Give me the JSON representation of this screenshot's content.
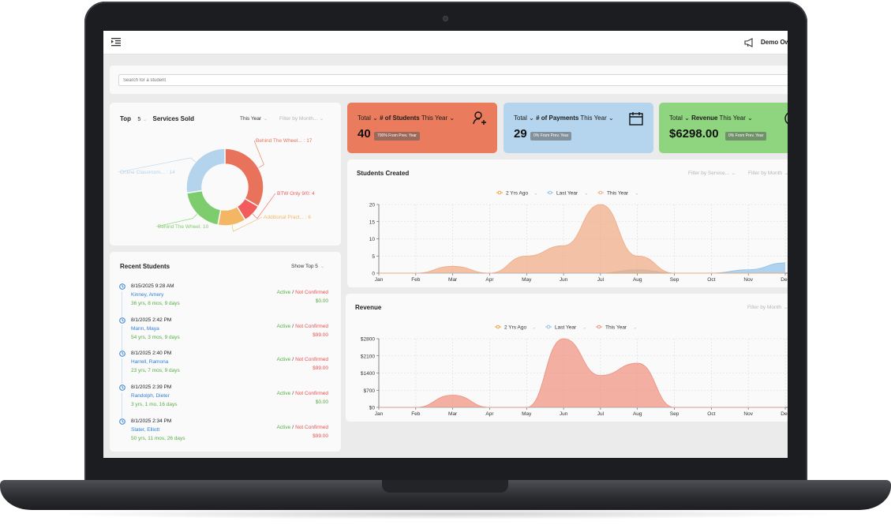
{
  "topbar": {
    "menu_icon": "menu-collapse-icon",
    "notification_icon": "megaphone-icon",
    "user_name": "Demo Own"
  },
  "search": {
    "placeholder": "Search for a student"
  },
  "top_services": {
    "title_prefix": "Top",
    "top_count": "5",
    "title_suffix": "Services Sold",
    "period": "This Year",
    "filter_placeholder": "Filter by Month...",
    "chart_data": {
      "type": "pie",
      "title": "Top 5 Services Sold",
      "labels": [
        "Behind The Wheel... : 17",
        "BTW Only 9/0: 4",
        "Additional Pract... : 6",
        "Behind The Wheel: 10",
        "Online Classroom... : 14"
      ],
      "names": [
        "Behind The Wheel...",
        "BTW Only 9/0",
        "Additional Pract...",
        "Behind The Wheel",
        "Online Classroom..."
      ],
      "values": [
        17,
        4,
        6,
        10,
        14
      ],
      "colors": [
        "#e8735a",
        "#f25c5c",
        "#f3b764",
        "#7dcc6e",
        "#b4d3ec"
      ]
    }
  },
  "tiles": [
    {
      "prefix": "Total",
      "metric": "# of Students",
      "period": "This Year",
      "value": "40",
      "badge": "700% From Prev. Year",
      "icon": "user-add-icon",
      "color": "#ea7c5d"
    },
    {
      "prefix": "Total",
      "metric": "# of Payments",
      "period": "This Year",
      "value": "29",
      "badge": "0% From Prev. Year",
      "icon": "calendar-icon",
      "color": "#b5d5ee"
    },
    {
      "prefix": "Total",
      "metric": "Revenue",
      "period": "This Year",
      "value": "$6298.00",
      "badge": "0% From Prev. Year",
      "icon": "dollar-circle-icon",
      "color": "#8fd47f"
    }
  ],
  "students_created": {
    "title": "Students Created",
    "filter_service": "Filter by Service...",
    "filter_month": "Filter by Month",
    "chart_data": {
      "type": "area",
      "title": "Students Created",
      "categories": [
        "Jan",
        "Feb",
        "Mar",
        "Apr",
        "May",
        "Jun",
        "Jul",
        "Aug",
        "Sep",
        "Oct",
        "Nov",
        "Dec"
      ],
      "y_ticks": [
        "0",
        "5",
        "10",
        "15",
        "20"
      ],
      "ylim": [
        0,
        20
      ],
      "series": [
        {
          "name": "2 Yrs Ago",
          "color": "#f0a437",
          "values": [
            0,
            0,
            0,
            0,
            0,
            0,
            0,
            0,
            0,
            0,
            0,
            0
          ]
        },
        {
          "name": "Last Year",
          "color": "#8fc0e8",
          "values": [
            0,
            0,
            0,
            0,
            0,
            0,
            0,
            1,
            0,
            0,
            1,
            3
          ]
        },
        {
          "name": "This Year",
          "color": "#f0aa82",
          "values": [
            0,
            0,
            2,
            0,
            5,
            8,
            20,
            5,
            0,
            0,
            0,
            0
          ]
        }
      ]
    }
  },
  "revenue": {
    "title": "Revenue",
    "filter_month": "Filter by Month",
    "chart_data": {
      "type": "area",
      "title": "Revenue",
      "categories": [
        "Jan",
        "Feb",
        "Mar",
        "Apr",
        "May",
        "Jun",
        "Jul",
        "Aug",
        "Sep",
        "Oct",
        "Nov",
        "Dec"
      ],
      "y_ticks": [
        "$0",
        "$700",
        "$1400",
        "$2100",
        "$2800"
      ],
      "ylim": [
        0,
        2800
      ],
      "series": [
        {
          "name": "2 Yrs Ago",
          "color": "#f0a437",
          "values": [
            0,
            0,
            0,
            0,
            0,
            0,
            0,
            0,
            0,
            0,
            0,
            0
          ]
        },
        {
          "name": "Last Year",
          "color": "#8fc0e8",
          "values": [
            0,
            0,
            0,
            0,
            0,
            0,
            0,
            0,
            0,
            0,
            0,
            0
          ]
        },
        {
          "name": "This Year",
          "color": "#f08f7c",
          "values": [
            0,
            0,
            500,
            0,
            0,
            2800,
            1300,
            1800,
            0,
            0,
            0,
            0
          ]
        }
      ]
    }
  },
  "recent_students": {
    "title": "Recent Students",
    "show_top": "Show Top 5",
    "items": [
      {
        "date": "8/15/2025 9:28 AM",
        "name": "Kinney, Amery",
        "age": "36 yrs, 8 mos, 9 days",
        "active": "Active",
        "sep": "/",
        "confirm": "Not Confirmed",
        "amount": "$0.00",
        "amount_color": "#55ad45"
      },
      {
        "date": "8/1/2025 2:42 PM",
        "name": "Mann, Maya",
        "age": "54 yrs, 3 mos, 9 days",
        "active": "Active",
        "sep": "/",
        "confirm": "Not Confirmed",
        "amount": "$99.00",
        "amount_color": "#e8514f"
      },
      {
        "date": "8/1/2025 2:40 PM",
        "name": "Harrell, Ramona",
        "age": "23 yrs, 7 mos, 9 days",
        "active": "Active",
        "sep": "/",
        "confirm": "Not Confirmed",
        "amount": "$99.00",
        "amount_color": "#e8514f"
      },
      {
        "date": "8/1/2025 2:39 PM",
        "name": "Randolph, Dieter",
        "age": "3 yrs, 1 mo, 16 days",
        "active": "Active",
        "sep": "/",
        "confirm": "Not Confirmed",
        "amount": "$0.00",
        "amount_color": "#55ad45"
      },
      {
        "date": "8/1/2025 2:34 PM",
        "name": "Slater, Elliott",
        "age": "50 yrs, 11 mos, 26 days",
        "active": "Active",
        "sep": "/",
        "confirm": "Not Confirmed",
        "amount": "$99.00",
        "amount_color": "#e8514f"
      }
    ]
  }
}
